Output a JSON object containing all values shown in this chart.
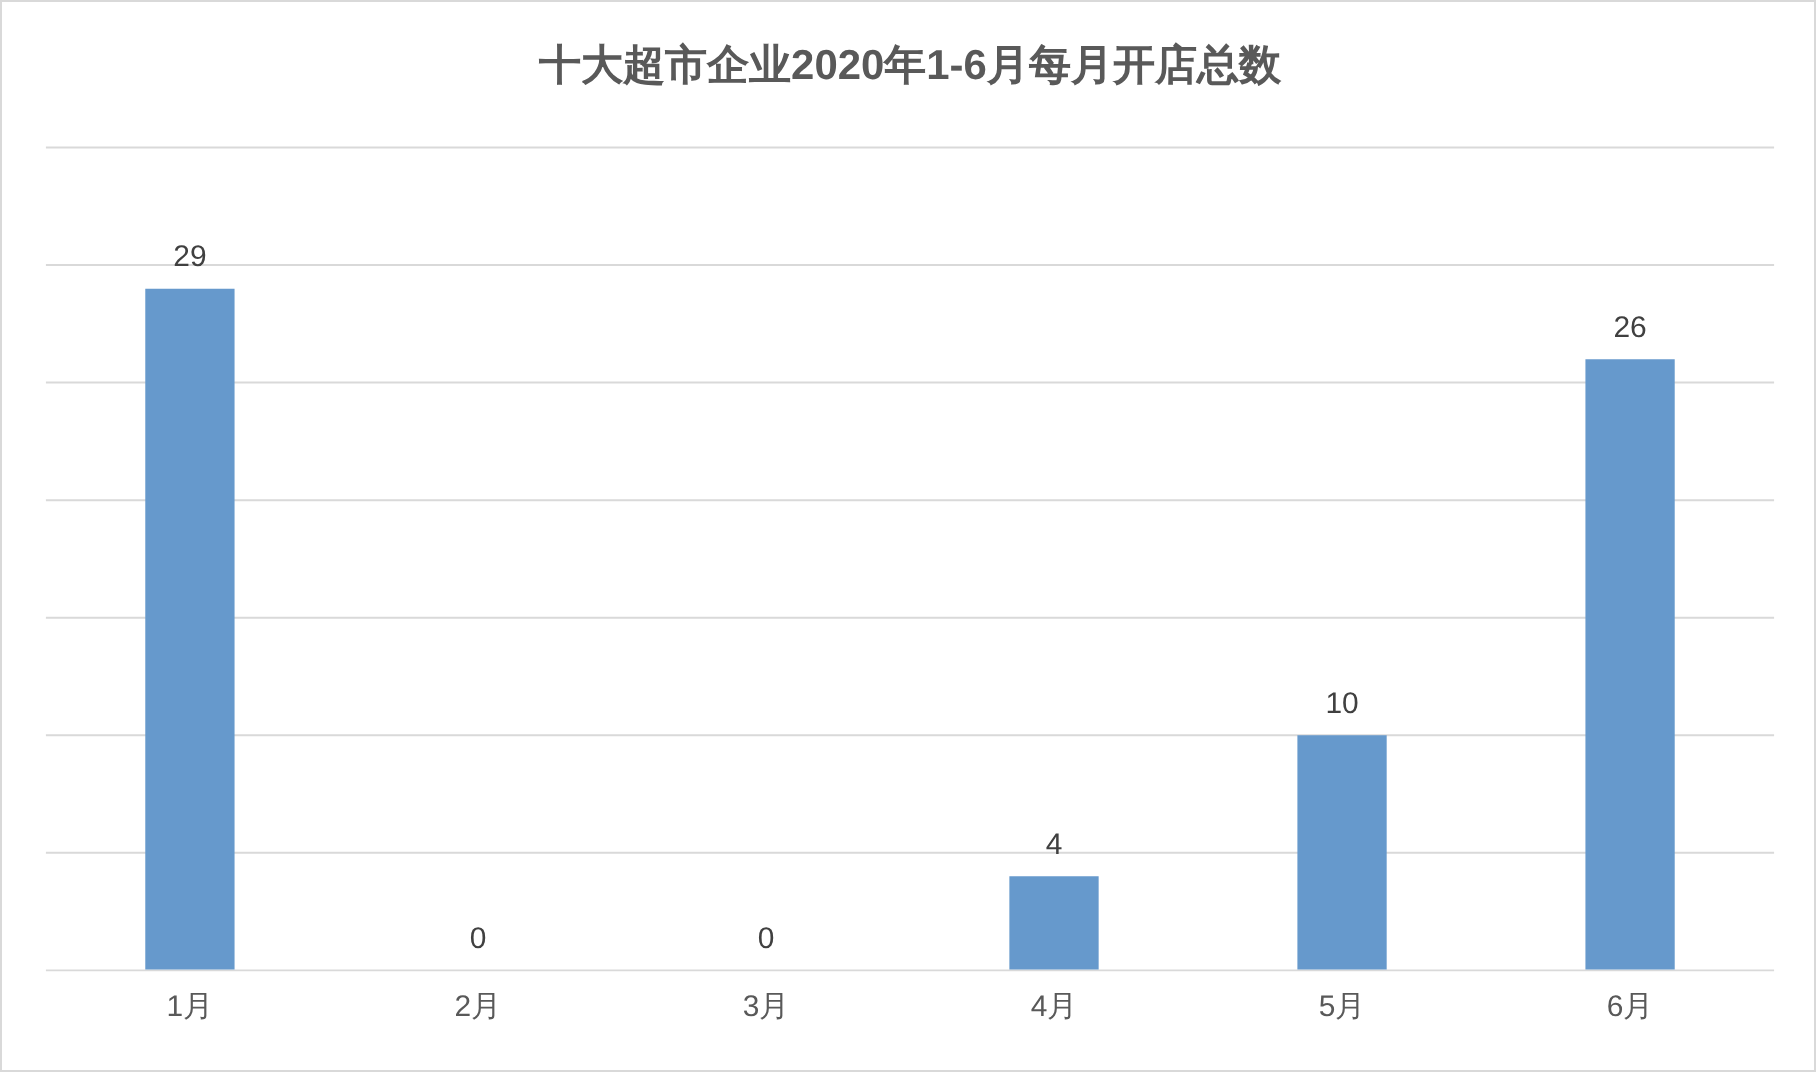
{
  "chart_data": {
    "type": "bar",
    "title": "十大超市企业2020年1-6月每月开店总数",
    "categories": [
      "1月",
      "2月",
      "3月",
      "4月",
      "5月",
      "6月"
    ],
    "values": [
      29,
      0,
      0,
      4,
      10,
      26
    ],
    "color": "#6699cc",
    "ylim": [
      0,
      35
    ],
    "yticks": [
      0,
      5,
      10,
      15,
      20,
      25,
      30,
      35
    ],
    "grid": "y",
    "tick_labels": "x",
    "data_labels": true
  }
}
